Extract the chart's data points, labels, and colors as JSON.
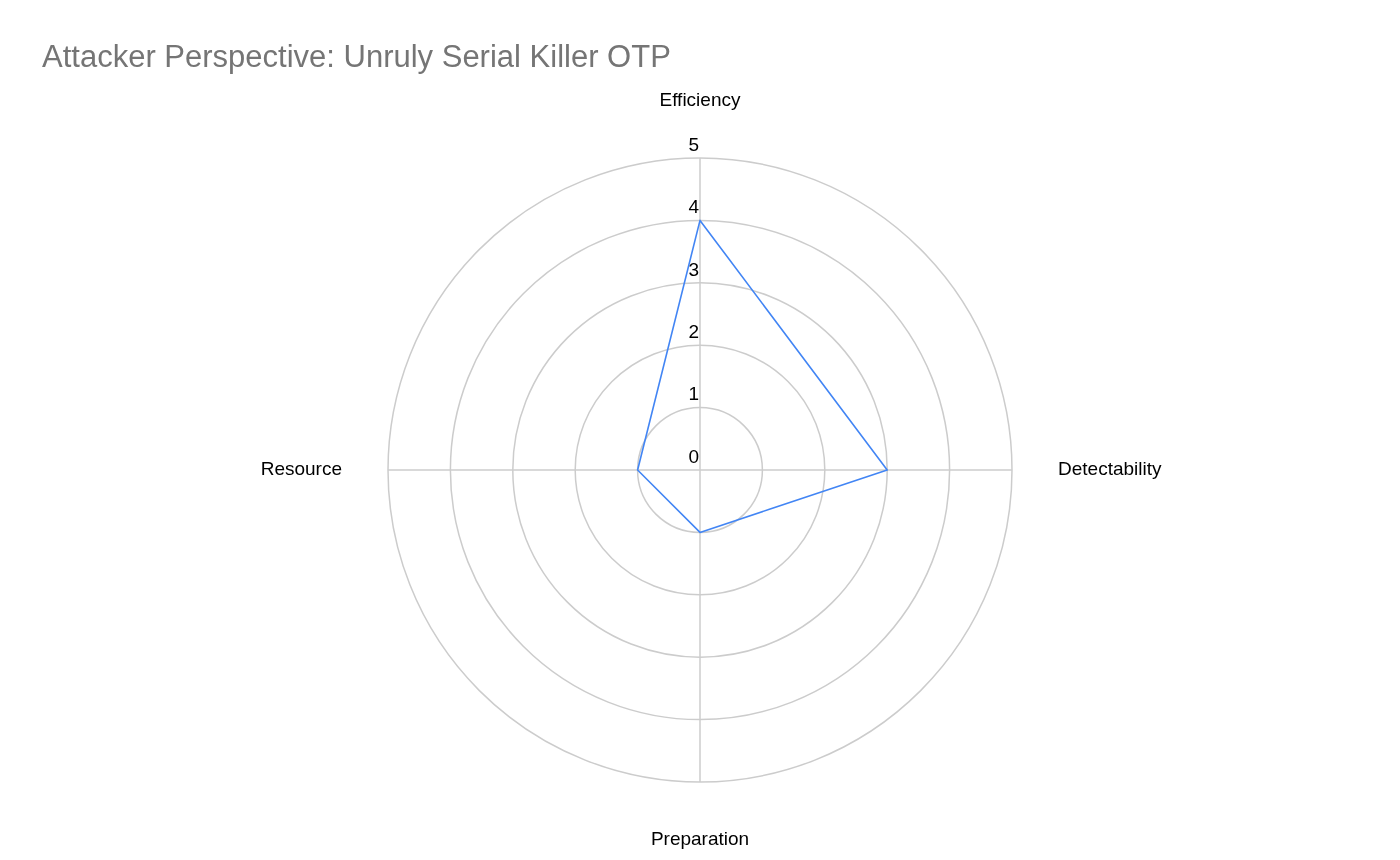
{
  "chart_data": {
    "type": "radar",
    "title": "Attacker Perspective: Unruly Serial Killer OTP",
    "categories": [
      "Efficiency",
      "Detectability",
      "Preparation",
      "Resource"
    ],
    "series": [
      {
        "color": "#4285f4",
        "values": [
          4,
          3,
          1,
          1
        ]
      }
    ],
    "ylim": [
      0,
      5
    ],
    "yticks": [
      0,
      1,
      2,
      3,
      4,
      5
    ],
    "grid": true,
    "marker": "none"
  }
}
